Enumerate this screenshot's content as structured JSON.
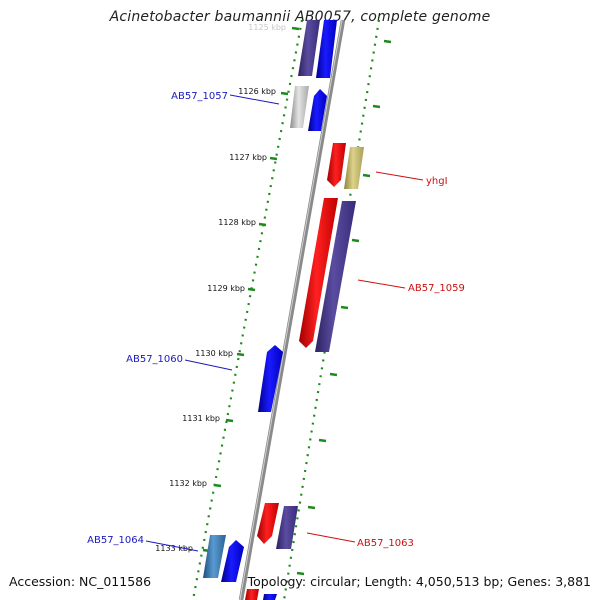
{
  "title": "Acinetobacter baumannii AB0057, complete genome",
  "footer": {
    "accession": "Accession: NC_011586",
    "summary": "Topology: circular; Length: 4,050,513 bp; Genes: 3,881"
  },
  "colors": {
    "forward_gene": "#1010ee",
    "reverse_gene": "#ee1111",
    "purple_gene": "#4a3d8c",
    "grey_gene": "#c4c4c4",
    "khaki_gene": "#c9bd6c",
    "steel_gene": "#3c7fb8",
    "backbone": "#8a8a8a",
    "ticks": "#1e8a1e",
    "blue_label": "#1a1abf",
    "red_label": "#cc1010"
  },
  "ticks": [
    {
      "label": "1125 kbp"
    },
    {
      "label": "1126 kbp"
    },
    {
      "label": "1127 kbp"
    },
    {
      "label": "1128 kbp"
    },
    {
      "label": "1129 kbp"
    },
    {
      "label": "1130 kbp"
    },
    {
      "label": "1131 kbp"
    },
    {
      "label": "1132 kbp"
    },
    {
      "label": "1133 kbp"
    }
  ],
  "gene_labels": [
    {
      "name": "AB57_1057",
      "side": "left"
    },
    {
      "name": "yhgI",
      "side": "right"
    },
    {
      "name": "AB57_1059",
      "side": "right"
    },
    {
      "name": "AB57_1060",
      "side": "left"
    },
    {
      "name": "AB57_1064",
      "side": "left"
    },
    {
      "name": "AB57_1063",
      "side": "right"
    }
  ]
}
